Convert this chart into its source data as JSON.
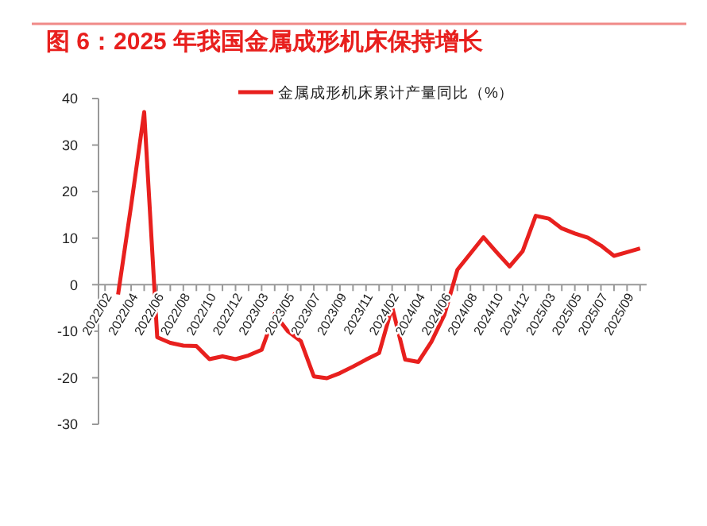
{
  "chart_data": {
    "type": "line",
    "title": "图 6：2025 年我国金属成形机床保持增长",
    "categories": [
      "2022/02",
      null,
      "2022/04",
      null,
      "2022/06",
      null,
      "2022/08",
      null,
      "2022/10",
      null,
      "2022/12",
      null,
      "2023/03",
      null,
      "2023/05",
      null,
      "2023/07",
      null,
      "2023/09",
      null,
      "2023/11",
      null,
      "2024/02",
      null,
      "2024/04",
      null,
      "2024/06",
      null,
      "2024/08",
      null,
      "2024/10",
      null,
      "2024/12",
      null,
      "2025/03",
      null,
      "2025/05",
      null,
      "2025/07",
      null,
      "2025/09",
      null
    ],
    "series": [
      {
        "name": "金属成形机床累计产量同比（%）",
        "color": "#e8201e",
        "values": [
          null,
          -2.1,
          17,
          37.1,
          -11.3,
          -12.5,
          -13.1,
          -13.2,
          -16.0,
          -15.4,
          -16.0,
          -15.2,
          -14.0,
          -6.3,
          -10.0,
          -12.1,
          -19.7,
          -20.1,
          -19.0,
          -17.6,
          -16.1,
          -14.7,
          -4.8,
          -16.1,
          -16.6,
          -12.3,
          -6.5,
          3.2,
          6.7,
          10.2,
          7.0,
          3.9,
          7.2,
          14.8,
          14.2,
          12.1,
          11.0,
          10.1,
          8.4,
          6.2,
          7.0,
          7.8
        ]
      }
    ],
    "ylim": [
      -30,
      40
    ],
    "yticks": [
      -30,
      -20,
      -10,
      0,
      10,
      20,
      30,
      40
    ],
    "grid": false,
    "legend": "top",
    "marker": "none",
    "line_style": "solid"
  }
}
